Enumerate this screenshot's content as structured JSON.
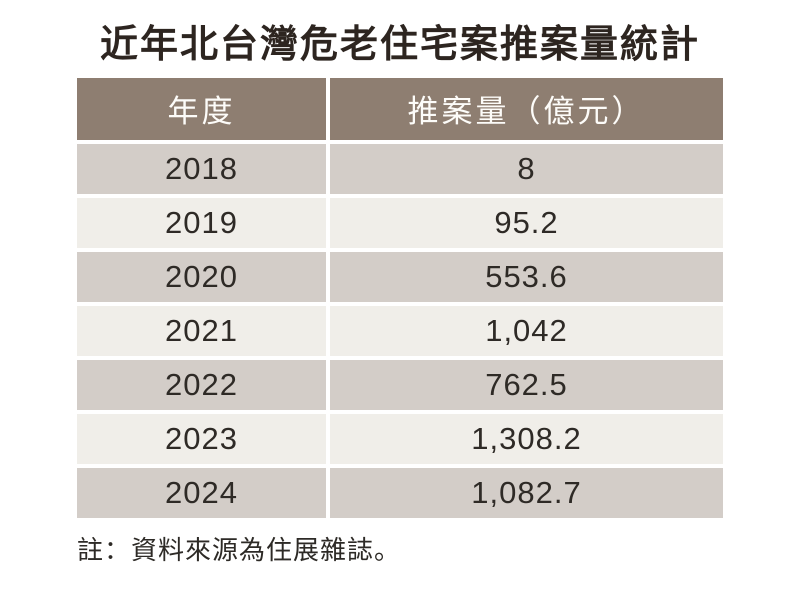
{
  "title": "近年北台灣危老住宅案推案量統計",
  "table": {
    "columns": [
      "年度",
      "推案量（億元）"
    ],
    "rows": [
      [
        "2018",
        "8"
      ],
      [
        "2019",
        "95.2"
      ],
      [
        "2020",
        "553.6"
      ],
      [
        "2021",
        "1,042"
      ],
      [
        "2022",
        "762.5"
      ],
      [
        "2023",
        "1,308.2"
      ],
      [
        "2024",
        "1,082.7"
      ]
    ]
  },
  "note": "註：資料來源為住展雜誌。",
  "colors": {
    "header_bg": "#8e7e71",
    "header_text": "#fdfcf9",
    "row_dark": "#d3cdc8",
    "row_light": "#f0eee9",
    "text": "#2e2a26",
    "background": "#ffffff"
  },
  "chart_data": {
    "type": "table",
    "title": "近年北台灣危老住宅案推案量統計",
    "columns": [
      "年度",
      "推案量（億元）"
    ],
    "categories": [
      "2018",
      "2019",
      "2020",
      "2021",
      "2022",
      "2023",
      "2024"
    ],
    "values": [
      8,
      95.2,
      553.6,
      1042,
      762.5,
      1308.2,
      1082.7
    ],
    "ylabel": "推案量（億元）",
    "xlabel": "年度",
    "note": "註：資料來源為住展雜誌。"
  }
}
